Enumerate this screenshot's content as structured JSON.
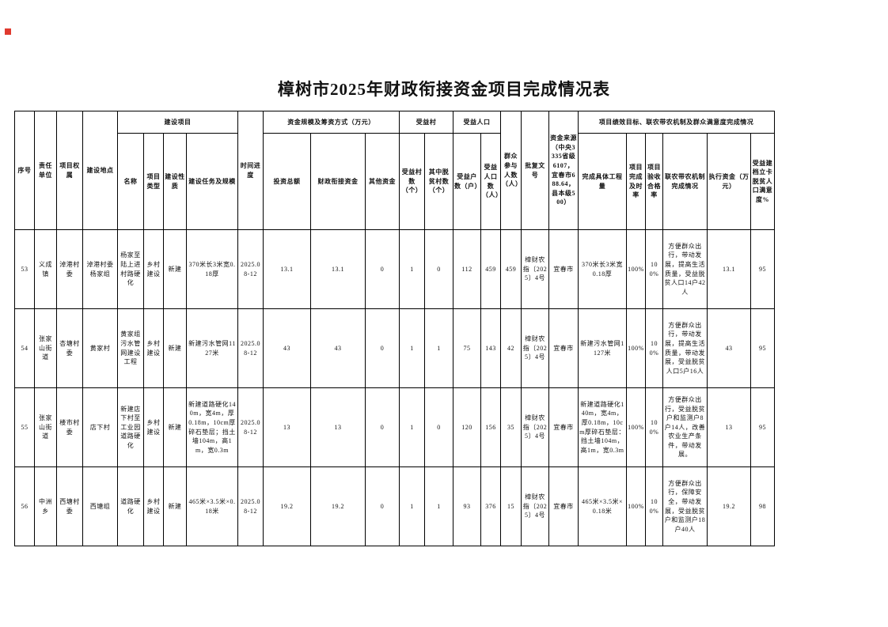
{
  "page": {
    "title": "樟树市2025年财政衔接资金项目完成情况表"
  },
  "table": {
    "header": {
      "seq": "序号",
      "unit": "责任单位",
      "ownership": "项目权属",
      "location": "建设地点",
      "project_group": "建设项目",
      "name": "名称",
      "type": "项目类型",
      "nature": "建设性质",
      "task": "建设任务及规模",
      "schedule": "时间进度",
      "fund_group": "资金规模及筹资方式（万元）",
      "total_invest": "投资总额",
      "fiscal_fund": "财政衔接资金",
      "other_fund": "其他资金",
      "village_group": "受益村",
      "village_count": "受益村数（个）",
      "poor_village_count": "其中脱贫村数（个）",
      "pop_group": "受益人口",
      "household_count": "受益户数（户）",
      "pop_count": "受益人口数（人）",
      "participants": "群众参与人数（人）",
      "approval_no": "批复文号",
      "fund_source": "资金来源（中央3335省级6107，宜春市688.64，县本级500）",
      "perf_group": "项目绩效目标、联农带农机制及群众满意度完成情况",
      "work_done": "完成具体工程量",
      "on_time_rate": "项目完成及时率",
      "acceptance_rate": "项目验收合格率",
      "mechanism": "联农带农机制完成情况",
      "executed_fund": "执行资金（万元）",
      "satisfaction": "受益建档立卡脱贫人口满意度%"
    },
    "rows": [
      [
        "53",
        "义成镇",
        "淖港村委",
        "淖港村委杨家组",
        "杨家至陆上进村路硬化",
        "乡村建设",
        "新建",
        "370米长3米宽0.18厚",
        "2025.08-12",
        "13.1",
        "13.1",
        "0",
        "1",
        "0",
        "112",
        "459",
        "459",
        "樟财农指〔2025〕4号",
        "宜春市",
        "370米长3米宽0.18厚",
        "100%",
        "100%",
        "方便群众出行，带动发展，提高生活质量，受益脱贫人口14户42人",
        "13.1",
        "95"
      ],
      [
        "54",
        "张家山街道",
        "杏塘村委",
        "黄家村",
        "黄家组污水管网建设工程",
        "乡村建设",
        "新建",
        "新建污水管网1127米",
        "2025.08-12",
        "43",
        "43",
        "0",
        "1",
        "1",
        "75",
        "143",
        "42",
        "樟财农指〔2025〕4号",
        "宜春市",
        "新建污水管网1127米",
        "100%",
        "100%",
        "方便群众出行，带动发展，提高生活质量，带动发展，受益脱贫人口5户16人",
        "43",
        "95"
      ],
      [
        "55",
        "张家山街道",
        "楼市村委",
        "店下村",
        "新建店下村至工业园道路硬化",
        "乡村建设",
        "新建",
        "新建道路硬化140m，宽4m，厚0.18m，10cm厚碎石垫层；挡土墙104m，高1m，宽0.3m",
        "2025.08-12",
        "13",
        "13",
        "0",
        "1",
        "0",
        "120",
        "156",
        "35",
        "樟财农指〔2025〕4号",
        "宜春市",
        "新建道路硬化140m，宽4m，厚0.18m，10cm厚碎石垫层：挡土墙104m，高1m，宽0.3m",
        "100%",
        "100%",
        "方便群众出行，受益脱贫户和监测户8户14人，改善农业生产条件，带动发展。",
        "13",
        "95"
      ],
      [
        "56",
        "中洲乡",
        "西塘村委",
        "西塘组",
        "道路硬化",
        "乡村建设",
        "新建",
        "465米×3.5米×0.18米",
        "2025.08-12",
        "19.2",
        "19.2",
        "0",
        "1",
        "1",
        "93",
        "376",
        "15",
        "樟财农指〔2025〕4号",
        "宜春市",
        "465米×3.5米×0.18米",
        "100%",
        "100%",
        "方便群众出行，保障安全，带动发展，受益脱贫户和监测户18户40人",
        "19.2",
        "98"
      ]
    ]
  }
}
